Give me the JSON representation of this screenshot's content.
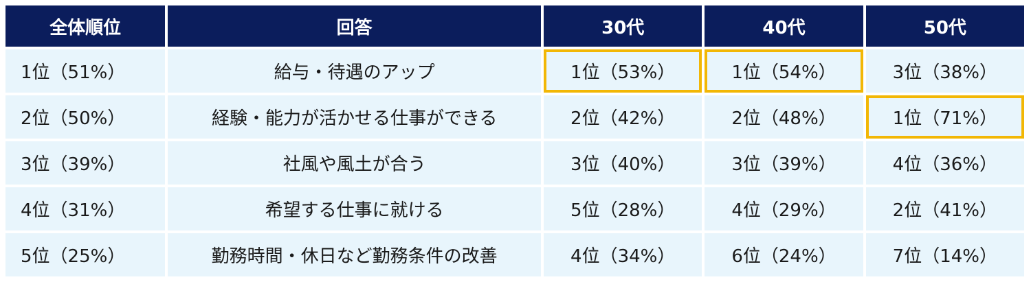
{
  "chart_data": {
    "type": "table",
    "headers": [
      "全体順位",
      "回答",
      "30代",
      "40代",
      "50代"
    ],
    "rows": [
      {
        "overall": "1位（51%）",
        "answer": "給与・待遇のアップ",
        "age30": "1位（53%）",
        "age40": "1位（54%）",
        "age50": "3位（38%）",
        "highlight": [
          true,
          true,
          false
        ]
      },
      {
        "overall": "2位（50%）",
        "answer": "経験・能力が活かせる仕事ができる",
        "age30": "2位（42%）",
        "age40": "2位（48%）",
        "age50": "1位（71%）",
        "highlight": [
          false,
          false,
          true
        ]
      },
      {
        "overall": "3位（39%）",
        "answer": "社風や風土が合う",
        "age30": "3位（40%）",
        "age40": "3位（39%）",
        "age50": "4位（36%）",
        "highlight": [
          false,
          false,
          false
        ]
      },
      {
        "overall": "4位（31%）",
        "answer": "希望する仕事に就ける",
        "age30": "5位（28%）",
        "age40": "4位（29%）",
        "age50": "2位（41%）",
        "highlight": [
          false,
          false,
          false
        ]
      },
      {
        "overall": "5位（25%）",
        "answer": "勤務時間・休日など勤務条件の改善",
        "age30": "4位（34%）",
        "age40": "6位（24%）",
        "age50": "7位（14%）",
        "highlight": [
          false,
          false,
          false
        ]
      }
    ]
  },
  "colors": {
    "header_bg": "#0b1d5c",
    "header_text": "#ffffff",
    "cell_bg": "#e8f5fc",
    "highlight_border": "#f2b705"
  }
}
